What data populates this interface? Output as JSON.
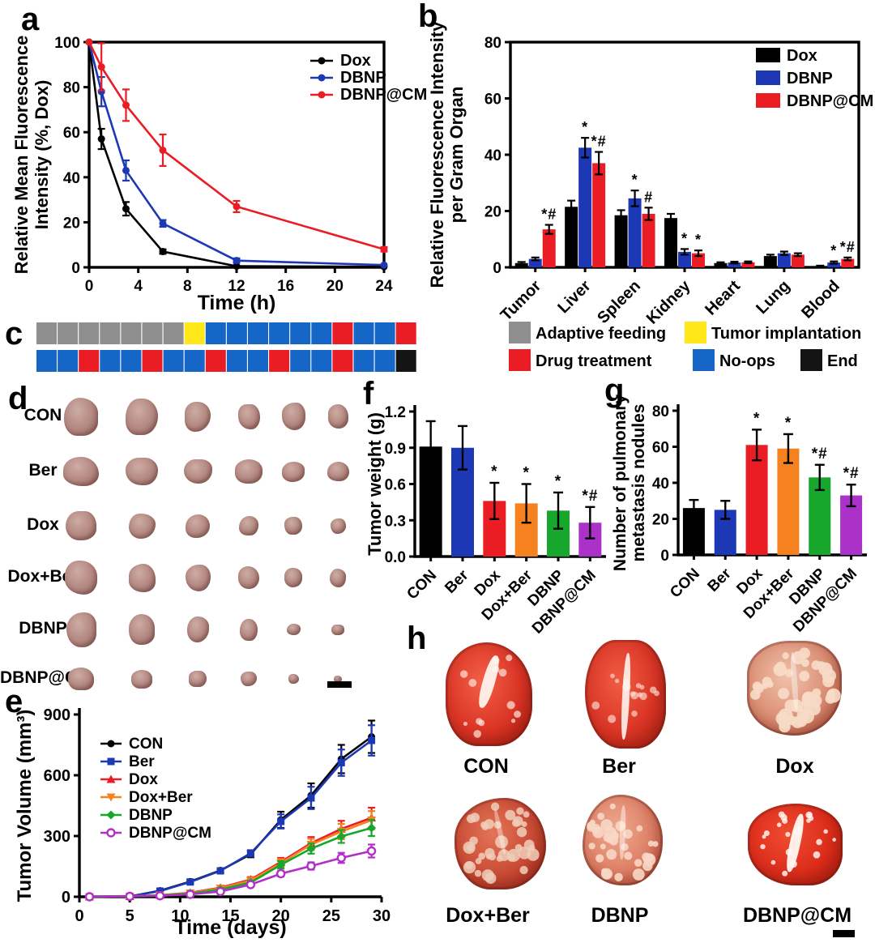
{
  "figure": {
    "panel_labels": [
      "a",
      "b",
      "c",
      "d",
      "e",
      "f",
      "g",
      "h"
    ],
    "background": "#ffffff"
  },
  "colors": {
    "black": "#000000",
    "blue": "#1d38b4",
    "red": "#ea1d25",
    "orange": "#f5821f",
    "green": "#16a72c",
    "purple": "#ab32c8",
    "magenta": "#b22fc8",
    "schedule_blue": "#1566c6",
    "gray": "#8f8f8f",
    "yellow": "#ffe719"
  },
  "chart_data": [
    {
      "id": "a",
      "type": "line",
      "xlabel": "Time (h)",
      "ylabel": "Relative Mean Fluorescence Intensity (%, Dox)",
      "ylabel_lines": [
        "Relative Mean Fluorescence",
        "Intensity (%, Dox)"
      ],
      "xlim": [
        0,
        24
      ],
      "ylim": [
        0,
        100
      ],
      "xticks": [
        0,
        4,
        8,
        12,
        16,
        20,
        24
      ],
      "yticks": [
        0,
        20,
        40,
        60,
        80,
        100
      ],
      "legend_position": "inside-top-right",
      "grid": false,
      "x": [
        0,
        1,
        3,
        6,
        12,
        24
      ],
      "series": [
        {
          "name": "Dox",
          "color": "#000000",
          "marker": "circle",
          "values": [
            100,
            57,
            26,
            7,
            0.5,
            0.3
          ],
          "errors": [
            0,
            4.5,
            3,
            1,
            0.3,
            0.3
          ]
        },
        {
          "name": "DBNP",
          "color": "#1d38b4",
          "marker": "circle",
          "values": [
            100,
            78,
            43,
            19.5,
            3,
            1
          ],
          "errors": [
            0,
            6.5,
            4.5,
            1.5,
            1,
            0.5
          ]
        },
        {
          "name": "DBNP@CM",
          "color": "#ea1d25",
          "marker": "circle",
          "values": [
            100,
            89,
            72,
            52,
            27,
            8
          ],
          "errors": [
            0,
            10.5,
            7,
            7,
            2.5,
            1
          ]
        }
      ]
    },
    {
      "id": "b",
      "type": "bar",
      "ylabel": "Relative Fluorescence Intensity per Gram Organ",
      "ylabel_lines": [
        "Relative Fluorescence Intensity",
        "per Gram Organ"
      ],
      "ylim": [
        0,
        80
      ],
      "yticks": [
        0,
        20,
        40,
        60,
        80
      ],
      "legend_position": "inside-top-right",
      "grid": false,
      "categories": [
        "Tumor",
        "Liver",
        "Spleen",
        "Kidney",
        "Heart",
        "Lung",
        "Blood"
      ],
      "series": [
        {
          "name": "Dox",
          "color": "#000000",
          "values": [
            1.5,
            21.5,
            18.5,
            17.5,
            1.5,
            4,
            0.4
          ],
          "errors": [
            0.4,
            2.2,
            1.8,
            1.5,
            0.3,
            0.5,
            0.2
          ],
          "annotations": [
            "",
            "",
            "",
            "",
            "",
            "",
            ""
          ]
        },
        {
          "name": "DBNP",
          "color": "#1d38b4",
          "values": [
            3,
            42.5,
            24.5,
            5.5,
            1.7,
            5,
            1.7
          ],
          "errors": [
            0.5,
            3.5,
            2.8,
            1,
            0.3,
            0.6,
            0.4
          ],
          "annotations": [
            "",
            "*",
            "*",
            "*",
            "",
            "",
            "*"
          ]
        },
        {
          "name": "DBNP@CM",
          "color": "#ea1d25",
          "values": [
            13.5,
            37,
            19,
            5,
            1.8,
            4.5,
            3
          ],
          "errors": [
            1.6,
            4,
            2.2,
            1,
            0.3,
            0.5,
            0.5
          ],
          "annotations": [
            "*#",
            "*#",
            "#",
            "*",
            "",
            "",
            "*#"
          ]
        }
      ]
    },
    {
      "id": "e",
      "type": "line",
      "xlabel": "Time (days)",
      "ylabel": "Tumor Volume (mm³)",
      "ylabel_lines": [
        "Tumor Volume (mm³)"
      ],
      "xlim": [
        0,
        30
      ],
      "ylim": [
        0,
        900
      ],
      "xticks": [
        0,
        5,
        10,
        15,
        20,
        25,
        30
      ],
      "yticks": [
        0,
        300,
        600,
        900
      ],
      "legend_position": "inside-top-left",
      "grid": false,
      "x": [
        1,
        5,
        8,
        11,
        14,
        17,
        20,
        23,
        26,
        29
      ],
      "series": [
        {
          "name": "CON",
          "color": "#000000",
          "marker": "circle",
          "values": [
            0,
            2,
            30,
            75,
            130,
            210,
            380,
            500,
            680,
            790
          ],
          "errors": [
            0,
            0,
            5,
            8,
            10,
            15,
            40,
            60,
            70,
            80
          ]
        },
        {
          "name": "Ber",
          "color": "#1d38b4",
          "marker": "square",
          "values": [
            0,
            2,
            28,
            73,
            128,
            215,
            372,
            488,
            662,
            772
          ],
          "errors": [
            0,
            0,
            5,
            8,
            10,
            15,
            35,
            55,
            65,
            75
          ]
        },
        {
          "name": "Dox",
          "color": "#ea1d25",
          "marker": "triangle",
          "values": [
            0,
            2,
            8,
            20,
            45,
            85,
            172,
            265,
            335,
            390
          ],
          "errors": [
            0,
            0,
            3,
            5,
            8,
            12,
            20,
            30,
            40,
            50
          ]
        },
        {
          "name": "Dox+Ber",
          "color": "#f5821f",
          "marker": "triangle-down",
          "values": [
            0,
            2,
            8,
            18,
            42,
            80,
            166,
            258,
            322,
            378
          ],
          "errors": [
            0,
            0,
            3,
            5,
            8,
            12,
            20,
            28,
            38,
            45
          ]
        },
        {
          "name": "DBNP",
          "color": "#16a72c",
          "marker": "diamond",
          "values": [
            0,
            2,
            7,
            16,
            36,
            70,
            158,
            238,
            298,
            340
          ],
          "errors": [
            0,
            0,
            3,
            4,
            7,
            10,
            18,
            25,
            32,
            40
          ]
        },
        {
          "name": "DBNP@CM",
          "color": "#b22fc8",
          "marker": "circle-open",
          "values": [
            0,
            2,
            5,
            12,
            26,
            60,
            114,
            152,
            192,
            226
          ],
          "errors": [
            0,
            0,
            2,
            4,
            6,
            9,
            14,
            18,
            25,
            32
          ]
        }
      ]
    },
    {
      "id": "f",
      "type": "bar",
      "ylabel": "Tumor weight (g)",
      "ylabel_lines": [
        "Tumor weight (g)"
      ],
      "ylim": [
        0,
        1.2
      ],
      "yticks": [
        0,
        0.3,
        0.6,
        0.9,
        1.2
      ],
      "ytick_decimals": 1,
      "grid": false,
      "categories": [
        "CON",
        "Ber",
        "Dox",
        "Dox+Ber",
        "DBNP",
        "DBNP@CM"
      ],
      "values": [
        0.91,
        0.9,
        0.46,
        0.44,
        0.38,
        0.28
      ],
      "errors": [
        0.21,
        0.18,
        0.15,
        0.16,
        0.15,
        0.13
      ],
      "annotations": [
        "",
        "",
        "*",
        "*",
        "*",
        "*#"
      ],
      "bar_colors": [
        "#000000",
        "#1d38b4",
        "#ea1d25",
        "#f5821f",
        "#16a72c",
        "#ab32c8"
      ]
    },
    {
      "id": "g",
      "type": "bar",
      "ylabel": "Number of pulmonary metastasis nodules",
      "ylabel_lines": [
        "Number of pulmonary",
        "metastasis nodules"
      ],
      "ylim": [
        0,
        80
      ],
      "yticks": [
        0,
        20,
        40,
        60,
        80
      ],
      "grid": false,
      "categories": [
        "CON",
        "Ber",
        "Dox",
        "Dox+Ber",
        "DBNP",
        "DBNP@CM"
      ],
      "values": [
        26,
        25,
        61,
        59,
        43,
        33
      ],
      "errors": [
        4.5,
        5,
        8.5,
        8,
        7,
        6
      ],
      "annotations": [
        "",
        "",
        "*",
        "*",
        "*#",
        "*#"
      ],
      "bar_colors": [
        "#000000",
        "#1d38b4",
        "#ea1d25",
        "#f5821f",
        "#16a72c",
        "#ab32c8"
      ]
    }
  ],
  "schedule": {
    "row1": [
      "gray",
      "gray",
      "gray",
      "gray",
      "gray",
      "gray",
      "gray",
      "yellow",
      "blue",
      "blue",
      "blue",
      "blue",
      "blue",
      "blue",
      "red",
      "blue",
      "blue",
      "red"
    ],
    "row2": [
      "blue",
      "blue",
      "red",
      "blue",
      "blue",
      "red",
      "blue",
      "blue",
      "red",
      "blue",
      "blue",
      "red",
      "blue",
      "blue",
      "red",
      "blue",
      "blue",
      "black"
    ],
    "palette": {
      "gray": "#8f8f8f",
      "yellow": "#ffe719",
      "blue": "#1566c6",
      "red": "#ea1d25",
      "black": "#141414"
    },
    "legend": [
      {
        "label": "Adaptive feeding",
        "color": "gray"
      },
      {
        "label": "Tumor implantation",
        "color": "yellow"
      },
      {
        "label": "Drug treatment",
        "color": "red"
      },
      {
        "label": "No-ops",
        "color": "blue"
      },
      {
        "label": "End",
        "color": "black"
      }
    ]
  },
  "tumor_panel": {
    "rows": [
      "CON",
      "Ber",
      "Dox",
      "Dox+Ber",
      "DBNP",
      "DBNP@CM"
    ]
  },
  "lung_panel": {
    "items": [
      "CON",
      "Ber",
      "Dox",
      "Dox+Ber",
      "DBNP",
      "DBNP@CM"
    ]
  }
}
